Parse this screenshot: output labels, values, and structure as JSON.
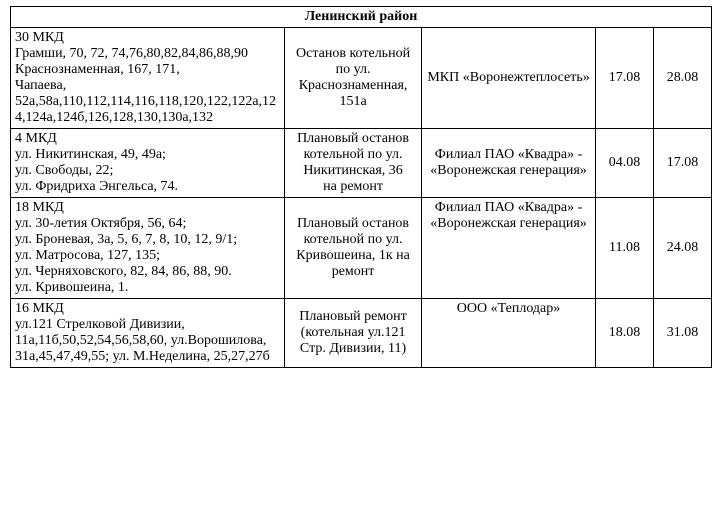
{
  "header": "Ленинский район",
  "cols": {
    "addr_w": 260,
    "reason_w": 130,
    "org_w": 165,
    "d_w": 55
  },
  "font": {
    "family": "Times New Roman",
    "size_pt": 14
  },
  "colors": {
    "text": "#000000",
    "bg": "#ffffff",
    "border": "#000000"
  },
  "rows": [
    {
      "addr": "30 МКД\nГрамши, 70, 72, 74,76,80,82,84,86,88,90\nКраснознаменная, 167, 171,\nЧапаева, 52а,58а,110,112,114,116,118,120,122,122а,124,124а,124б,126,128,130,130а,132",
      "reason": "Останов котельной по ул. Краснознаменная, 151а",
      "org": "МКП «Воронежтеплосеть»",
      "date1": "17.08",
      "date2": "28.08"
    },
    {
      "addr": "4 МКД\nул. Никитинская, 49, 49а;\nул. Свободы, 22;\nул. Фридриха Энгельса, 74.",
      "reason": "Плановый останов котельной по ул. Никитинская, 36\nна ремонт",
      "org": "Филиал ПАО «Квадра» - «Воронежская генерация»",
      "date1": "04.08",
      "date2": "17.08"
    },
    {
      "addr": "18 МКД\nул. 30-летия Октября, 56, 64;\nул. Броневая, 3а, 5, 6, 7, 8, 10, 12, 9/1;\nул. Матросова, 127, 135;\nул. Черняховского, 82, 84, 86, 88, 90.\nул. Кривошеина, 1.",
      "reason": "Плановый останов котельной по ул. Кривошеина, 1к на ремонт",
      "org": "Филиал ПАО «Квадра» - «Воронежская генерация»",
      "date1": "11.08",
      "date2": "24.08"
    },
    {
      "addr": "16 МКД\nул.121 Стрелковой Дивизии, 11а,11б,50,52,54,56,58,60, ул.Ворошилова, 31а,45,47,49,55; ул. М.Неделина, 25,27,27б",
      "reason": "Плановый ремонт (котельная ул.121 Стр. Дивизии, 11)",
      "org": "ООО «Теплодар»",
      "date1": "18.08",
      "date2": "31.08"
    }
  ]
}
